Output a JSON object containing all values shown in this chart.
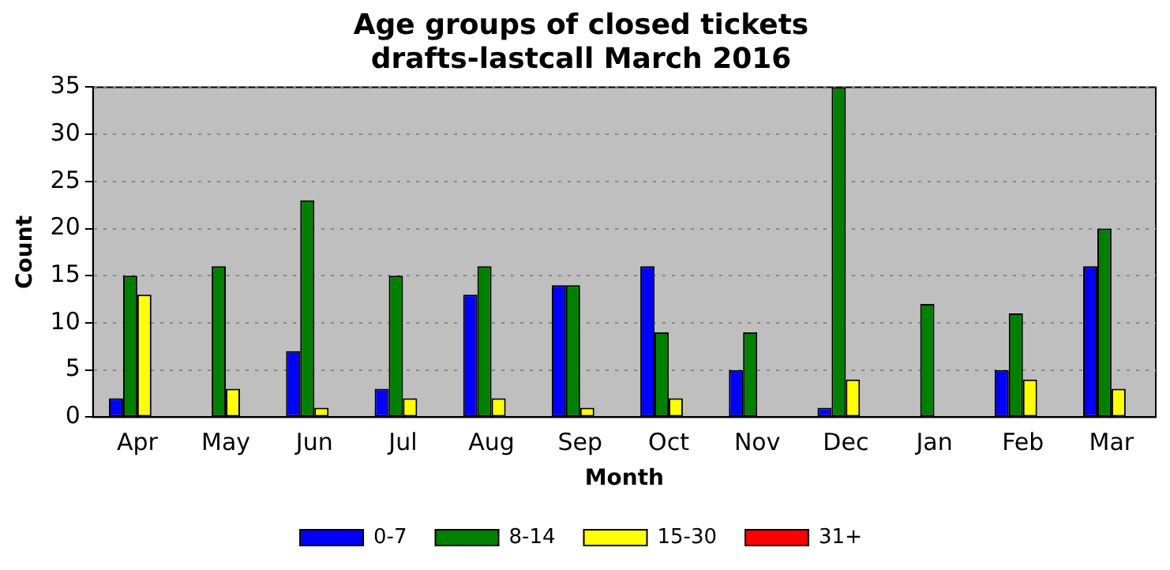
{
  "chart_data": {
    "type": "bar",
    "title": "Age groups of closed tickets",
    "subtitle": "drafts-lastcall March 2016",
    "xlabel": "Month",
    "ylabel": "Count",
    "categories": [
      "Apr",
      "May",
      "Jun",
      "Jul",
      "Aug",
      "Sep",
      "Oct",
      "Nov",
      "Dec",
      "Jan",
      "Feb",
      "Mar"
    ],
    "series": [
      {
        "name": "0-7",
        "color": "#0000ff",
        "values": [
          2,
          0,
          7,
          3,
          13,
          14,
          16,
          5,
          1,
          0,
          5,
          16
        ]
      },
      {
        "name": "8-14",
        "color": "#008000",
        "values": [
          15,
          16,
          23,
          15,
          16,
          14,
          9,
          9,
          35,
          12,
          11,
          20
        ]
      },
      {
        "name": "15-30",
        "color": "#ffff00",
        "values": [
          13,
          3,
          1,
          2,
          2,
          1,
          2,
          0,
          4,
          0,
          4,
          3
        ]
      },
      {
        "name": "31+",
        "color": "#ff0000",
        "values": [
          0,
          0,
          0,
          0,
          0,
          0,
          0,
          0,
          0,
          0,
          0,
          0
        ]
      }
    ],
    "ylim": [
      0,
      35
    ],
    "yticks": [
      0,
      5,
      10,
      15,
      20,
      25,
      30,
      35
    ],
    "grid": "y",
    "legend": "bottom"
  }
}
